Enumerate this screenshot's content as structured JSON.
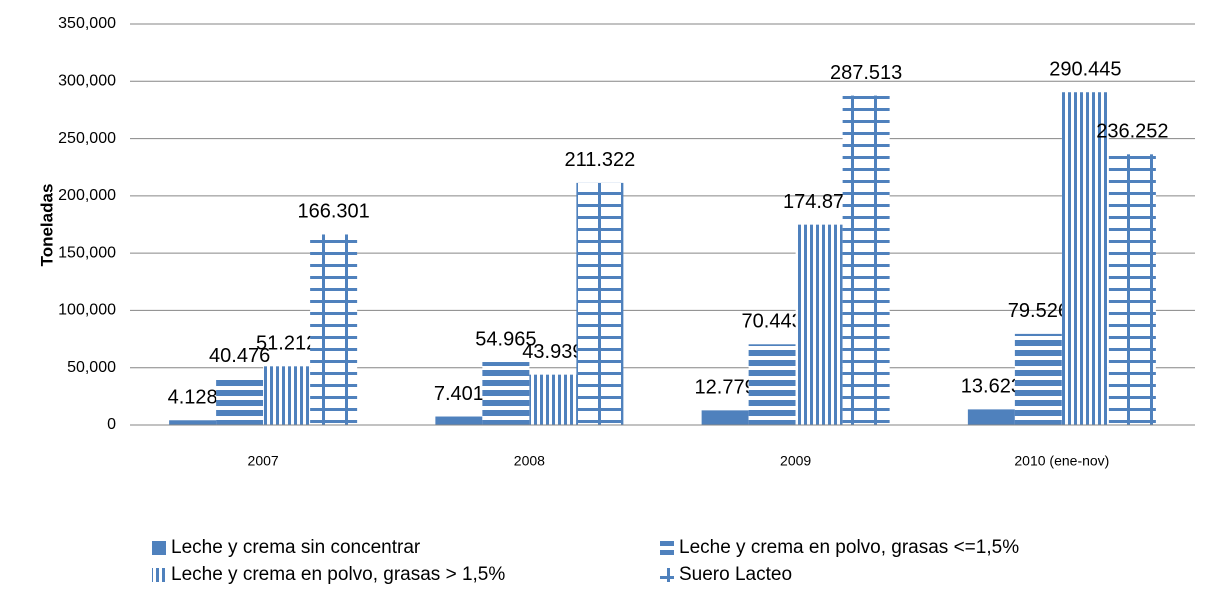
{
  "chart_data": {
    "type": "bar",
    "ylabel": "Toneladas",
    "categories": [
      "2007",
      "2008",
      "2009",
      "2010 (ene-nov)"
    ],
    "series": [
      {
        "name": "Leche y crema sin concentrar",
        "color": "#4f81bd",
        "pattern": "solid",
        "values": [
          4128,
          7401,
          12779,
          13623
        ],
        "value_labels": [
          "4.128",
          "7.401",
          "12.779",
          "13.623"
        ]
      },
      {
        "name": "Leche y crema en polvo, grasas <=1,5%",
        "color": "#4f81bd",
        "pattern": "horizontal",
        "values": [
          40476,
          54965,
          70443,
          79526
        ],
        "value_labels": [
          "40.476",
          "54.965",
          "70.443",
          "79.526"
        ]
      },
      {
        "name": "Leche y crema en polvo, grasas > 1,5%",
        "color": "#4f81bd",
        "pattern": "vertical",
        "values": [
          51212,
          43939,
          174870,
          290445
        ],
        "value_labels": [
          "51.212",
          "43.939",
          "174.870",
          "290.445"
        ]
      },
      {
        "name": "Suero Lacteo",
        "color": "#4f81bd",
        "pattern": "grid",
        "values": [
          166301,
          211322,
          287513,
          236252
        ],
        "value_labels": [
          "166.301",
          "211.322",
          "287.513",
          "236.252"
        ]
      }
    ],
    "ylim": [
      0,
      350000
    ],
    "yticks": [
      0,
      {
        "value": 50000,
        "label": "50,000"
      },
      {
        "value": 100000,
        "label": "100,000"
      },
      {
        "value": 150000,
        "label": "150,000"
      },
      {
        "value": 200000,
        "label": "200,000"
      },
      {
        "value": 250000,
        "label": "250,000"
      },
      {
        "value": 300000,
        "label": "300,000"
      },
      {
        "value": 350000,
        "label": "350,000"
      }
    ],
    "grid": true,
    "legend": "bottom"
  }
}
